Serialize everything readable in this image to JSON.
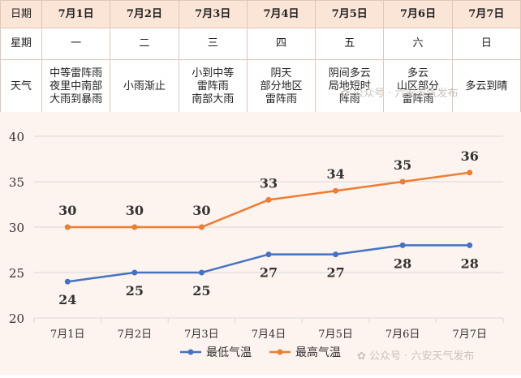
{
  "table": {
    "row_headers": [
      "日期",
      "星期",
      "天气"
    ],
    "dates": [
      "7月1日",
      "7月2日",
      "7月3日",
      "7月4日",
      "7月5日",
      "7月6日",
      "7月7日"
    ],
    "weekdays": [
      "一",
      "二",
      "三",
      "四",
      "五",
      "六",
      "日"
    ],
    "weather": [
      "中等雷阵雨\n夜里中南部\n大雨到暴雨",
      "小雨渐止",
      "小到中等\n雷阵雨\n南部大雨",
      "阴天\n部分地区\n雷阵雨",
      "阴间多云\n局地短时\n阵雨",
      "多云\n山区部分\n雷阵雨",
      "多云到晴"
    ]
  },
  "watermark": "公众号 · 六安天气发布",
  "colors": {
    "low": "#4472c4",
    "high": "#ed7d31",
    "header_bg": "#fbe5d6",
    "chart_bg": "#fdf3ef"
  },
  "chart_data": {
    "type": "line",
    "categories": [
      "7月1日",
      "7月2日",
      "7月3日",
      "7月4日",
      "7月5日",
      "7月6日",
      "7月7日"
    ],
    "series": [
      {
        "name": "最低气温",
        "values": [
          24,
          25,
          25,
          27,
          27,
          28,
          28
        ]
      },
      {
        "name": "最高气温",
        "values": [
          30,
          30,
          30,
          33,
          34,
          35,
          36
        ]
      }
    ],
    "ylim": [
      20,
      40
    ],
    "yticks": [
      20,
      25,
      30,
      35,
      40
    ],
    "grid": true,
    "legend_position": "bottom-center",
    "data_labels": true
  }
}
